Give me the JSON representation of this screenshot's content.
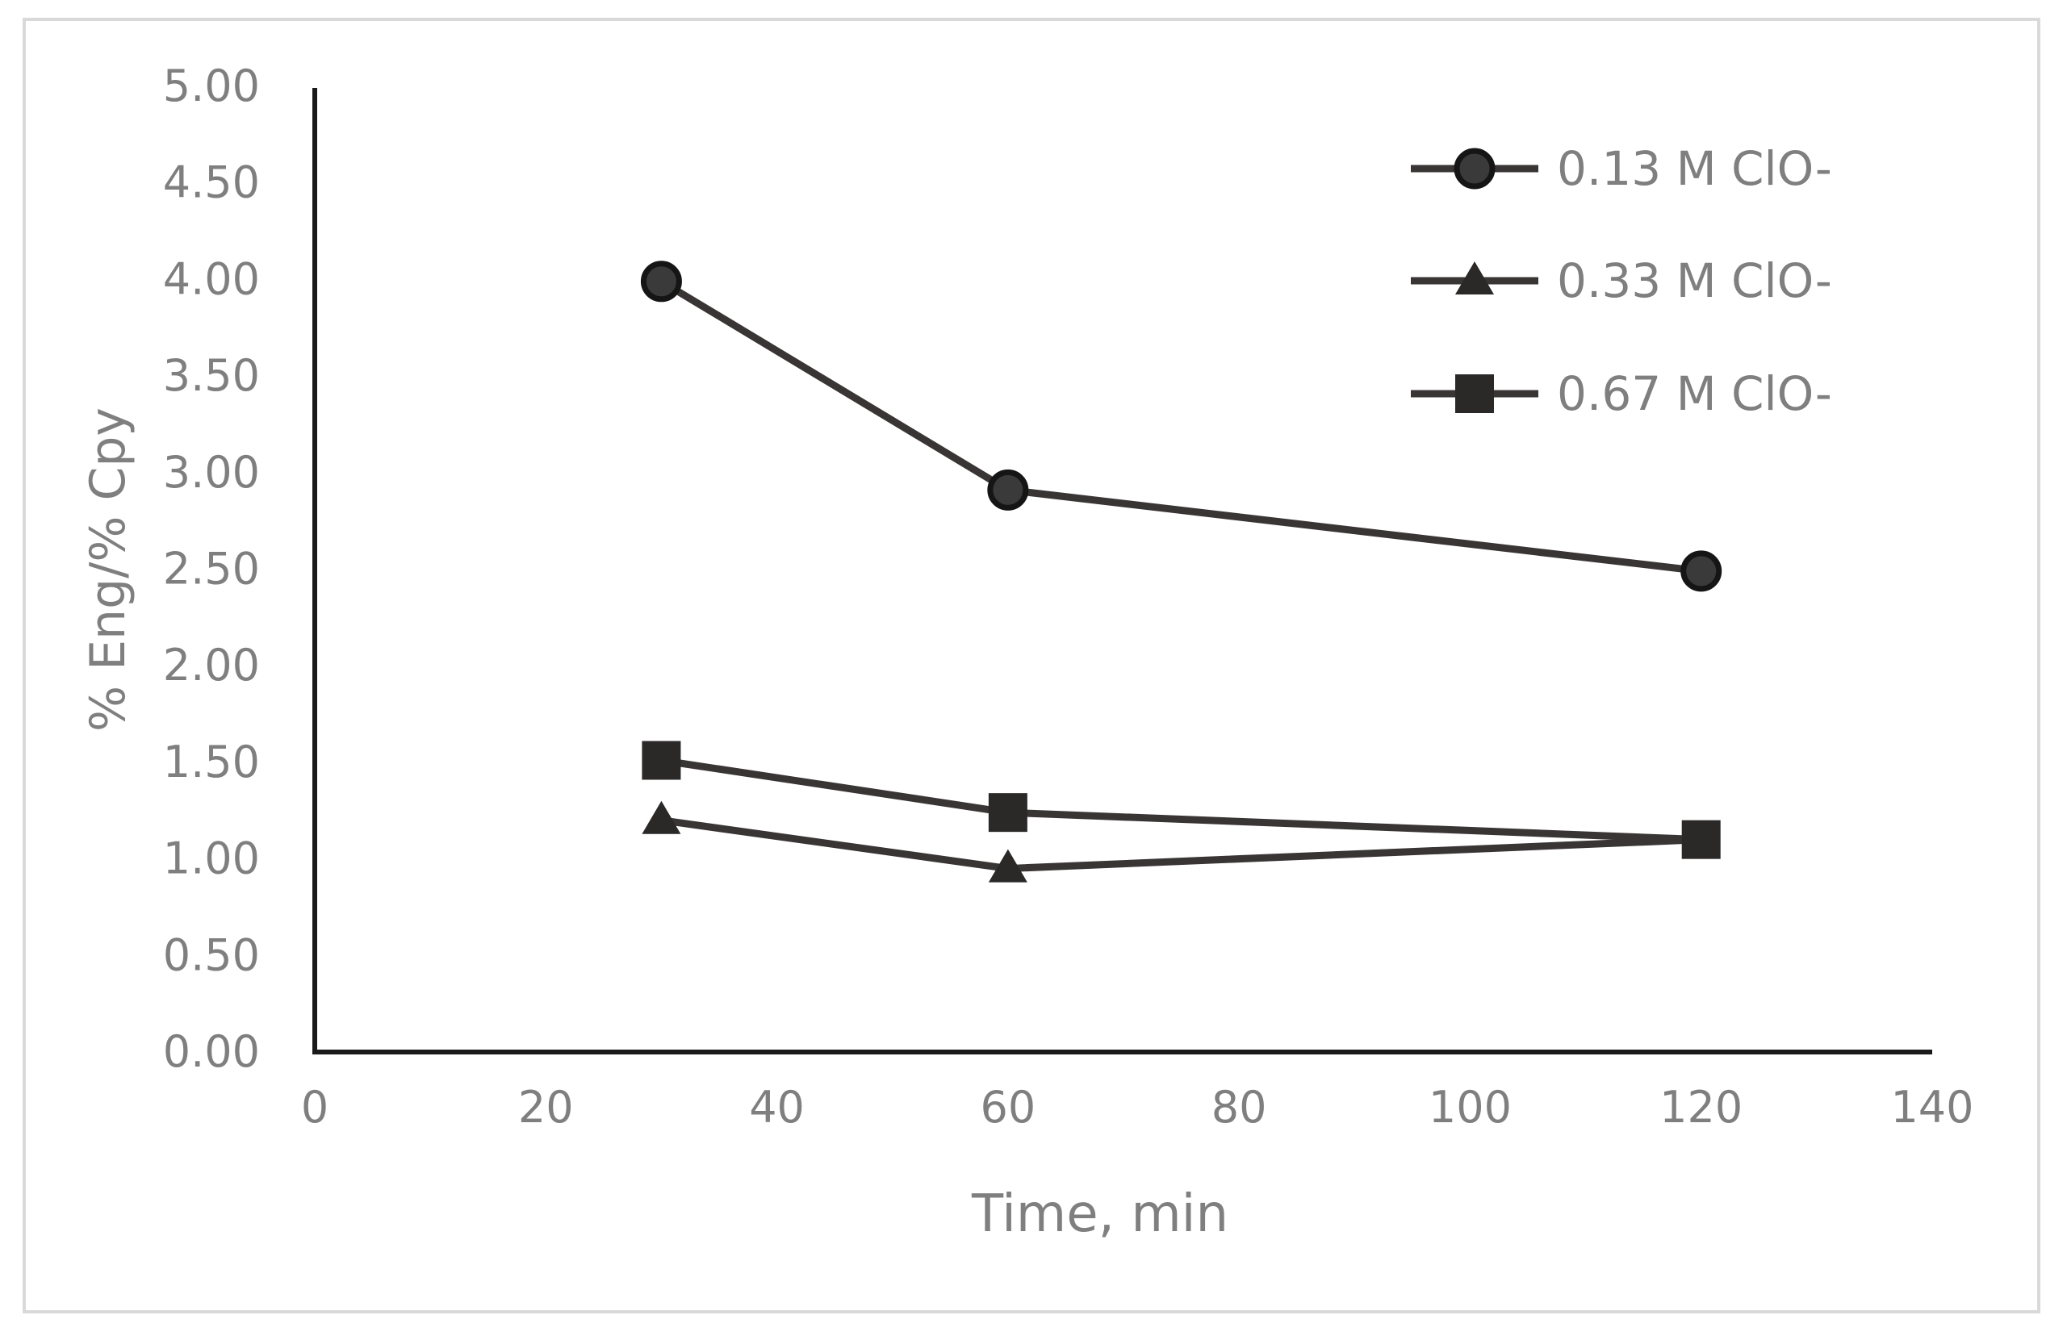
{
  "chart_data": {
    "type": "line",
    "title": "",
    "xlabel": "Time, min",
    "ylabel": "% Eng/% Cpy",
    "xlim": [
      0,
      140
    ],
    "ylim": [
      0,
      5
    ],
    "x_ticks": [
      0,
      20,
      40,
      60,
      80,
      100,
      120,
      140
    ],
    "y_ticks": [
      "0.00",
      "0.50",
      "1.00",
      "1.50",
      "2.00",
      "2.50",
      "3.00",
      "3.50",
      "4.00",
      "4.50",
      "5.00"
    ],
    "grid": false,
    "legend_position": "top-right",
    "x": [
      30,
      60,
      120
    ],
    "series": [
      {
        "name": "0.13 M ClO-",
        "marker": "circle",
        "values": [
          3.99,
          2.91,
          2.49
        ]
      },
      {
        "name": "0.33 M ClO-",
        "marker": "triangle",
        "values": [
          1.2,
          0.95,
          1.1
        ]
      },
      {
        "name": "0.67 M ClO-",
        "marker": "square",
        "values": [
          1.51,
          1.24,
          1.1
        ]
      }
    ],
    "colors": {
      "line": "#3a3535",
      "marker_fill": "#2b2828",
      "axis": "#1a1a1a",
      "tick_text": "#7f7f7f",
      "legend_text": "#7f7f7f",
      "frame": "#d9d9d9"
    }
  }
}
